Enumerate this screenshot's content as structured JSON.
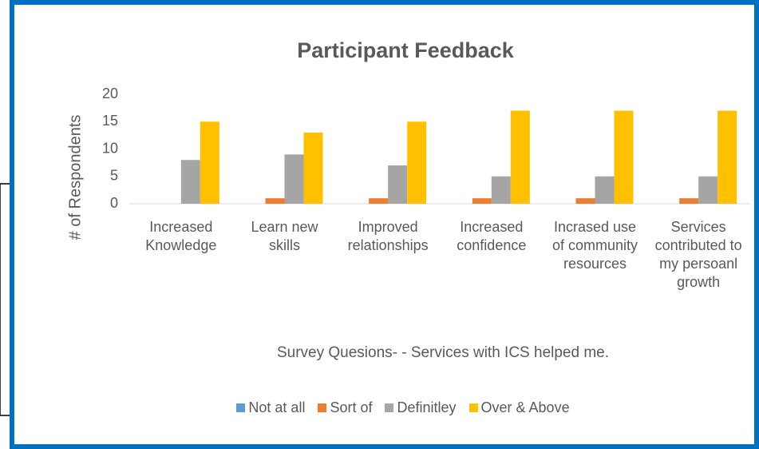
{
  "chart_data": {
    "type": "bar",
    "title": "Participant Feedback",
    "y_label": "# of Respondents",
    "x_label": "Survey Quesions- - Services with ICS helped me.",
    "categories": [
      "Increased Knowledge",
      "Learn new skills",
      "Improved relationships",
      "Increased confidence",
      "Incrased use of community resources",
      "Services contributed to my persoanl growth"
    ],
    "series": [
      {
        "name": "Not at all",
        "color": "#5b9bd5",
        "values": [
          0,
          0,
          0,
          0,
          0,
          0
        ]
      },
      {
        "name": "Sort of",
        "color": "#ed7d31",
        "values": [
          0,
          1,
          1,
          1,
          1,
          1
        ]
      },
      {
        "name": "Definitley",
        "color": "#a5a5a5",
        "values": [
          8,
          9,
          7,
          5,
          5,
          5
        ]
      },
      {
        "name": "Over & Above",
        "color": "#ffc000",
        "values": [
          15,
          13,
          15,
          17,
          17,
          17
        ]
      }
    ],
    "ylim": [
      0,
      20
    ],
    "yticks": [
      0,
      5,
      10,
      15,
      20
    ],
    "legend": "bottom"
  }
}
